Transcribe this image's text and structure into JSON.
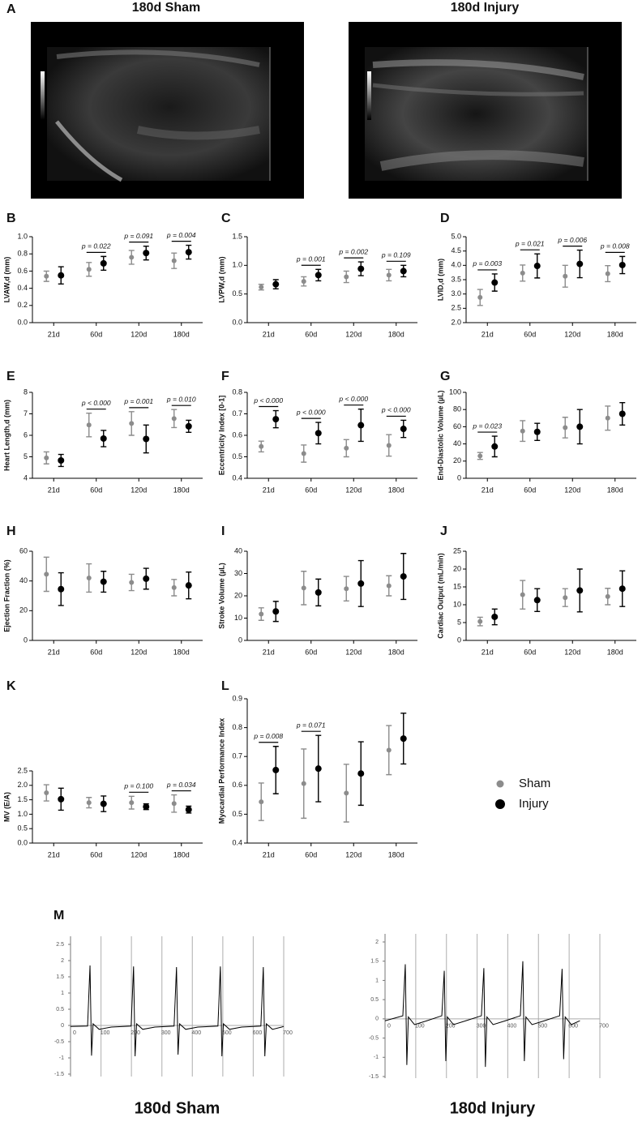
{
  "images": [
    {
      "panel": "A",
      "title": "180d Sham"
    },
    {
      "title": "180d Injury"
    }
  ],
  "legend": [
    {
      "name": "Sham",
      "color": "#8c8c8c"
    },
    {
      "name": "Injury",
      "color": "#000000"
    }
  ],
  "chart_data": [
    {
      "type": "errorbar",
      "panel": "B",
      "ylabel": "LVAW,d (mm)",
      "categories": [
        "21d",
        "60d",
        "120d",
        "180d"
      ],
      "series": [
        {
          "color": "#8c8c8c",
          "values": [
            0.54,
            0.62,
            0.76,
            0.72
          ],
          "errors": [
            0.06,
            0.08,
            0.08,
            0.09
          ]
        },
        {
          "color": "#000000",
          "values": [
            0.55,
            0.69,
            0.81,
            0.82
          ],
          "errors": [
            0.1,
            0.08,
            0.08,
            0.08
          ]
        }
      ],
      "ylim": [
        0,
        1
      ],
      "yticks": [
        {
          "value": 0,
          "label": "0.0"
        },
        0.2,
        0.4,
        0.6,
        0.8,
        {
          "value": 1,
          "label": "1.0"
        }
      ],
      "annotations": [
        {
          "category": "60d",
          "text": "p = 0.022"
        },
        {
          "category": "120d",
          "text": "p = 0.091"
        },
        {
          "category": "180d",
          "text": "p = 0.004"
        }
      ]
    },
    {
      "type": "errorbar",
      "panel": "C",
      "ylabel": "LVPW,d (mm)",
      "categories": [
        "21d",
        "60d",
        "120d",
        "180d"
      ],
      "series": [
        {
          "color": "#8c8c8c",
          "values": [
            0.62,
            0.72,
            0.8,
            0.83
          ],
          "errors": [
            0.05,
            0.08,
            0.1,
            0.1
          ]
        },
        {
          "color": "#000000",
          "values": [
            0.67,
            0.83,
            0.94,
            0.9
          ],
          "errors": [
            0.08,
            0.1,
            0.12,
            0.1
          ]
        }
      ],
      "ylim": [
        0,
        1.5
      ],
      "yticks": [
        {
          "value": 0,
          "label": "0.0"
        },
        0.5,
        {
          "value": 1,
          "label": "1.0"
        },
        1.5
      ],
      "annotations": [
        {
          "category": "60d",
          "text": "p = 0.001"
        },
        {
          "category": "120d",
          "text": "p = 0.002"
        },
        {
          "category": "180d",
          "text": "p = 0.109"
        }
      ]
    },
    {
      "type": "errorbar",
      "panel": "D",
      "ylabel": "LVID,d (mm)",
      "categories": [
        "21d",
        "60d",
        "120d",
        "180d"
      ],
      "series": [
        {
          "color": "#8c8c8c",
          "values": [
            2.88,
            3.73,
            3.62,
            3.71
          ],
          "errors": [
            0.28,
            0.28,
            0.38,
            0.28
          ]
        },
        {
          "color": "#000000",
          "values": [
            3.4,
            3.98,
            4.05,
            4.01
          ],
          "errors": [
            0.3,
            0.42,
            0.48,
            0.3
          ]
        }
      ],
      "ylim": [
        2,
        5
      ],
      "yticks": [
        {
          "value": 2,
          "label": "2.0"
        },
        2.5,
        {
          "value": 3,
          "label": "3.0"
        },
        3.5,
        {
          "value": 4,
          "label": "4.0"
        },
        4.5,
        {
          "value": 5,
          "label": "5.0"
        }
      ],
      "annotations": [
        {
          "category": "21d",
          "text": "p = 0.003"
        },
        {
          "category": "60d",
          "text": "p = 0.021"
        },
        {
          "category": "120d",
          "text": "p = 0.006"
        },
        {
          "category": "180d",
          "text": "p = 0.008"
        }
      ]
    },
    {
      "type": "errorbar",
      "panel": "E",
      "ylabel": "Heart Length,d (mm)",
      "categories": [
        "21d",
        "60d",
        "120d",
        "180d"
      ],
      "series": [
        {
          "color": "#8c8c8c",
          "values": [
            4.95,
            6.48,
            6.55,
            6.78
          ],
          "errors": [
            0.28,
            0.55,
            0.55,
            0.42
          ]
        },
        {
          "color": "#000000",
          "values": [
            4.83,
            5.85,
            5.83,
            6.42
          ],
          "errors": [
            0.28,
            0.38,
            0.65,
            0.28
          ]
        }
      ],
      "ylim": [
        4,
        8
      ],
      "yticks": [
        4,
        5,
        6,
        7,
        8
      ],
      "annotations": [
        {
          "category": "60d",
          "text": "p < 0.000"
        },
        {
          "category": "120d",
          "text": "p = 0.001"
        },
        {
          "category": "180d",
          "text": "p = 0.010"
        }
      ]
    },
    {
      "type": "errorbar",
      "panel": "F",
      "ylabel": "Eccentricity Index [0-1]",
      "categories": [
        "21d",
        "60d",
        "120d",
        "180d"
      ],
      "series": [
        {
          "color": "#8c8c8c",
          "values": [
            0.548,
            0.515,
            0.54,
            0.553
          ],
          "errors": [
            0.025,
            0.04,
            0.04,
            0.05
          ]
        },
        {
          "color": "#000000",
          "values": [
            0.675,
            0.61,
            0.647,
            0.63
          ],
          "errors": [
            0.04,
            0.05,
            0.075,
            0.04
          ]
        }
      ],
      "ylim": [
        0.4,
        0.8
      ],
      "yticks": [
        0.4,
        0.5,
        0.6,
        0.7,
        0.8
      ],
      "annotations": [
        {
          "category": "21d",
          "text": "p < 0.000"
        },
        {
          "category": "60d",
          "text": "p < 0.000"
        },
        {
          "category": "120d",
          "text": "p < 0.000"
        },
        {
          "category": "180d",
          "text": "p < 0.000"
        }
      ]
    },
    {
      "type": "errorbar",
      "panel": "G",
      "ylabel": "End-Diastolic Volume (µL)",
      "categories": [
        "21d",
        "60d",
        "120d",
        "180d"
      ],
      "series": [
        {
          "color": "#8c8c8c",
          "values": [
            26,
            55,
            59,
            70
          ],
          "errors": [
            4,
            12,
            12,
            14
          ]
        },
        {
          "color": "#000000",
          "values": [
            37,
            54,
            60,
            75
          ],
          "errors": [
            12,
            10,
            20,
            13
          ]
        }
      ],
      "ylim": [
        0,
        100
      ],
      "yticks": [
        0,
        20,
        40,
        60,
        80,
        100
      ],
      "annotations": [
        {
          "category": "21d",
          "text": "p = 0.023"
        }
      ]
    },
    {
      "type": "errorbar",
      "panel": "H",
      "ylabel": "Ejection Fraction (%)",
      "categories": [
        "21d",
        "60d",
        "120d",
        "180d"
      ],
      "series": [
        {
          "color": "#8c8c8c",
          "values": [
            44.5,
            42,
            39,
            35.5
          ],
          "errors": [
            11.5,
            9.5,
            5.5,
            5.5
          ]
        },
        {
          "color": "#000000",
          "values": [
            34.5,
            39.5,
            41.5,
            37
          ],
          "errors": [
            11,
            7,
            7,
            9
          ]
        }
      ],
      "ylim": [
        0,
        60
      ],
      "yticks": [
        0,
        20,
        40,
        60
      ]
    },
    {
      "type": "errorbar",
      "panel": "I",
      "ylabel": "Stroke Volume (µL)",
      "categories": [
        "21d",
        "60d",
        "120d",
        "180d"
      ],
      "series": [
        {
          "color": "#8c8c8c",
          "values": [
            11.8,
            23.5,
            23.2,
            24.5
          ],
          "errors": [
            2.8,
            7.5,
            5.5,
            4.5
          ]
        },
        {
          "color": "#000000",
          "values": [
            13,
            21.5,
            25.5,
            28.7
          ],
          "errors": [
            4.5,
            6,
            10.3,
            10.3
          ]
        }
      ],
      "ylim": [
        0,
        40
      ],
      "yticks": [
        0,
        10,
        20,
        30,
        40
      ]
    },
    {
      "type": "errorbar",
      "panel": "J",
      "ylabel": "Cardiac Output (mL/min)",
      "categories": [
        "21d",
        "60d",
        "120d",
        "180d"
      ],
      "series": [
        {
          "color": "#8c8c8c",
          "values": [
            5.3,
            12.8,
            12,
            12.3
          ],
          "errors": [
            1.2,
            4,
            2.5,
            2.3
          ]
        },
        {
          "color": "#000000",
          "values": [
            6.6,
            11.3,
            14,
            14.5
          ],
          "errors": [
            2.2,
            3.2,
            6,
            5
          ]
        }
      ],
      "ylim": [
        0,
        25
      ],
      "yticks": [
        0,
        5,
        10,
        15,
        20,
        25
      ]
    },
    {
      "type": "errorbar",
      "panel": "K",
      "ylabel": "MV (E/A)",
      "categories": [
        "21d",
        "60d",
        "120d",
        "180d"
      ],
      "series": [
        {
          "color": "#8c8c8c",
          "values": [
            1.74,
            1.4,
            1.4,
            1.37
          ],
          "errors": [
            0.28,
            0.18,
            0.22,
            0.3
          ]
        },
        {
          "color": "#000000",
          "values": [
            1.52,
            1.36,
            1.26,
            1.16
          ],
          "errors": [
            0.38,
            0.27,
            0.1,
            0.12
          ]
        }
      ],
      "ylim": [
        0,
        2.5
      ],
      "yticks": [
        {
          "value": 0,
          "label": "0.0"
        },
        0.5,
        {
          "value": 1,
          "label": "1.0"
        },
        1.5,
        {
          "value": 2,
          "label": "2.0"
        },
        2.5
      ],
      "annotations": [
        {
          "category": "120d",
          "text": "p = 0.100"
        },
        {
          "category": "180d",
          "text": "p = 0.034"
        }
      ]
    },
    {
      "type": "errorbar",
      "panel": "L",
      "ylabel": "Myocardial Performance Index",
      "categories": [
        "21d",
        "60d",
        "120d",
        "180d"
      ],
      "series": [
        {
          "color": "#8c8c8c",
          "values": [
            0.543,
            0.606,
            0.573,
            0.722
          ],
          "errors": [
            0.065,
            0.12,
            0.1,
            0.085
          ]
        },
        {
          "color": "#000000",
          "values": [
            0.653,
            0.658,
            0.641,
            0.762
          ],
          "errors": [
            0.082,
            0.115,
            0.11,
            0.088
          ]
        }
      ],
      "ylim": [
        0.4,
        0.9
      ],
      "yticks": [
        0.4,
        0.5,
        0.6,
        0.7,
        0.8,
        0.9
      ],
      "annotations": [
        {
          "category": "21d",
          "text": "p = 0.008"
        },
        {
          "category": "60d",
          "text": "p = 0.071"
        }
      ]
    },
    {
      "type": "line",
      "panel": "M",
      "title": "180d Sham",
      "color": "#000000",
      "grid": true,
      "x": [
        0,
        56,
        64,
        69,
        74,
        94,
        134,
        199,
        207,
        212,
        217,
        237,
        277,
        340,
        348,
        353,
        358,
        378,
        418,
        484,
        492,
        497,
        502,
        522,
        562,
        625,
        633,
        638,
        643,
        663,
        693,
        700
      ],
      "values": [
        -0.03,
        -0.02,
        1.85,
        -0.93,
        0.05,
        -0.12,
        -0.05,
        -0.02,
        1.82,
        -0.95,
        0.05,
        -0.12,
        -0.05,
        -0.02,
        1.8,
        -0.9,
        0.05,
        -0.12,
        -0.05,
        -0.02,
        1.82,
        -0.95,
        0.05,
        -0.12,
        -0.05,
        -0.02,
        1.8,
        -0.95,
        0.05,
        -0.12,
        -0.05,
        -0.03
      ],
      "xlim": [
        0,
        700
      ],
      "xticks": [
        0,
        100,
        200,
        300,
        400,
        500,
        600,
        700
      ],
      "ylim": [
        -1.5,
        2.5
      ],
      "yticks": [
        -1.5,
        -1,
        -0.5,
        0,
        0.5,
        1,
        1.5,
        2,
        2.5
      ]
    },
    {
      "type": "line",
      "title": "180d Injury",
      "color": "#000000",
      "grid": true,
      "x": [
        0,
        58,
        66,
        71,
        76,
        96,
        136,
        185,
        193,
        198,
        203,
        223,
        263,
        314,
        322,
        327,
        332,
        352,
        392,
        441,
        449,
        454,
        459,
        479,
        519,
        569,
        577,
        582,
        587,
        607,
        635
      ],
      "values": [
        -0.05,
        0.08,
        1.42,
        -1.2,
        0.05,
        -0.15,
        -0.05,
        0.08,
        1.25,
        -1.1,
        0.05,
        -0.15,
        -0.05,
        0.08,
        1.32,
        -1.25,
        0.05,
        -0.15,
        -0.05,
        0.08,
        1.5,
        -1.1,
        0.05,
        -0.15,
        -0.05,
        0.08,
        1.3,
        -1.05,
        0.05,
        -0.15,
        -0.05
      ],
      "xlim": [
        0,
        700
      ],
      "xticks": [
        0,
        100,
        200,
        300,
        400,
        500,
        600,
        700
      ],
      "ylim": [
        -1.5,
        2
      ],
      "yticks": [
        -1.5,
        -1,
        -0.5,
        0,
        0.5,
        1,
        1.5,
        2
      ]
    }
  ]
}
